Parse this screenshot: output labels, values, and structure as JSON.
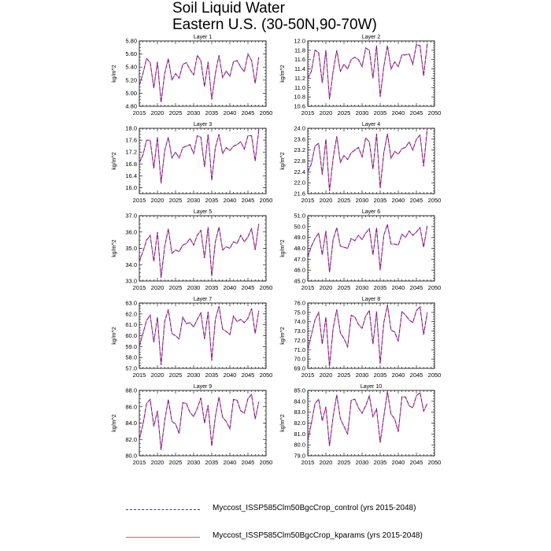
{
  "chart_data": {
    "type": "line",
    "title": "Soil Liquid Water",
    "subtitle": "Eastern U.S. (30-50N,90-70W)",
    "xlabel": "",
    "ylabel": "kg/m^2",
    "xlim": [
      2015,
      2050
    ],
    "x_ticks": [
      "2015",
      "2020",
      "2025",
      "2030",
      "2035",
      "2040",
      "2045",
      "2050"
    ],
    "x": [
      2015,
      2016,
      2017,
      2018,
      2019,
      2020,
      2021,
      2022,
      2023,
      2024,
      2025,
      2026,
      2027,
      2028,
      2029,
      2030,
      2031,
      2032,
      2033,
      2034,
      2035,
      2036,
      2037,
      2038,
      2039,
      2040,
      2041,
      2042,
      2043,
      2044,
      2045,
      2046,
      2047,
      2048
    ],
    "series_styles": [
      {
        "name": "Myccost_ISSP585Clm50BgcCrop_control (yrs 2015-2048)",
        "color": "#6a1fa0",
        "dash": "dashed"
      },
      {
        "name": "Myccost_ISSP585Clm50BgcCrop_kparams (yrs 2015-2048)",
        "color": "#e8546a",
        "dash": "solid"
      }
    ],
    "panels": [
      {
        "title": "Layer 1",
        "ylim": [
          4.8,
          5.8
        ],
        "yticks": [
          "4.80",
          "5.00",
          "5.20",
          "5.40",
          "5.60",
          "5.80"
        ],
        "values": [
          5.12,
          5.3,
          5.53,
          5.47,
          5.08,
          5.48,
          4.86,
          5.3,
          5.53,
          5.2,
          5.3,
          5.23,
          5.44,
          5.47,
          5.36,
          5.28,
          5.58,
          5.5,
          5.1,
          5.48,
          4.9,
          5.3,
          5.58,
          5.24,
          5.34,
          5.26,
          5.48,
          5.5,
          5.4,
          5.33,
          5.6,
          5.5,
          5.15,
          5.55
        ]
      },
      {
        "title": "Layer 2",
        "ylim": [
          10.6,
          12.0
        ],
        "yticks": [
          "10.6",
          "10.8",
          "11.0",
          "11.2",
          "11.4",
          "11.6",
          "11.8",
          "12.0"
        ],
        "values": [
          11.2,
          11.35,
          11.8,
          11.75,
          11.1,
          11.8,
          10.75,
          11.35,
          11.8,
          11.35,
          11.5,
          11.4,
          11.6,
          11.65,
          11.6,
          11.45,
          11.85,
          11.8,
          11.2,
          11.9,
          10.8,
          11.45,
          11.9,
          11.4,
          11.55,
          11.45,
          11.7,
          11.7,
          11.72,
          11.5,
          11.92,
          11.9,
          11.25,
          11.95
        ]
      },
      {
        "title": "Layer 3",
        "ylim": [
          15.8,
          18.0
        ],
        "yticks": [
          "16.0",
          "16.4",
          "16.8",
          "17.2",
          "17.6",
          "18.0"
        ],
        "values": [
          16.85,
          17.1,
          17.6,
          17.6,
          16.65,
          17.7,
          16.15,
          17.25,
          17.7,
          17.0,
          17.2,
          17.0,
          17.35,
          17.4,
          17.45,
          17.15,
          17.75,
          17.7,
          16.7,
          17.8,
          16.25,
          17.35,
          17.8,
          17.15,
          17.35,
          17.25,
          17.4,
          17.45,
          17.55,
          17.3,
          17.75,
          17.75,
          16.9,
          17.95
        ]
      },
      {
        "title": "Layer 4",
        "ylim": [
          21.6,
          24.0
        ],
        "yticks": [
          "21.6",
          "22.0",
          "22.4",
          "22.8",
          "23.2",
          "23.6",
          "24.0"
        ],
        "values": [
          22.4,
          22.7,
          23.35,
          23.45,
          22.3,
          23.6,
          21.7,
          22.9,
          23.7,
          22.75,
          23.0,
          22.85,
          23.1,
          23.2,
          23.3,
          22.95,
          23.65,
          23.5,
          22.5,
          23.8,
          21.8,
          23.1,
          23.8,
          22.9,
          23.15,
          23.05,
          23.25,
          23.3,
          23.5,
          23.2,
          23.6,
          23.75,
          22.6,
          24.0
        ]
      },
      {
        "title": "Layer 5",
        "ylim": [
          33.0,
          37.0
        ],
        "yticks": [
          "33.0",
          "34.0",
          "35.0",
          "36.0",
          "37.0"
        ],
        "values": [
          34.2,
          34.8,
          35.5,
          35.8,
          34.2,
          36.0,
          33.2,
          35.1,
          36.2,
          34.7,
          34.9,
          34.8,
          35.2,
          35.3,
          35.6,
          35.2,
          35.8,
          36.1,
          34.4,
          36.3,
          33.3,
          35.4,
          36.3,
          34.9,
          35.1,
          35.0,
          35.4,
          35.3,
          35.8,
          35.4,
          35.7,
          36.2,
          34.9,
          36.5
        ]
      },
      {
        "title": "Layer 6",
        "ylim": [
          45.0,
          51.0
        ],
        "yticks": [
          "45.0",
          "46.0",
          "47.0",
          "48.0",
          "49.0",
          "50.0",
          "51.0"
        ],
        "values": [
          47.2,
          48.2,
          48.9,
          49.4,
          47.4,
          49.6,
          45.8,
          48.8,
          49.9,
          48.2,
          48.1,
          48.0,
          48.9,
          48.7,
          49.2,
          48.8,
          49.4,
          49.8,
          47.4,
          49.9,
          46.0,
          49.2,
          50.2,
          48.4,
          48.4,
          48.3,
          49.3,
          49.0,
          49.6,
          49.2,
          49.5,
          49.9,
          48.1,
          50.1
        ]
      },
      {
        "title": "Layer 7",
        "ylim": [
          57.0,
          63.0
        ],
        "yticks": [
          "57.0",
          "58.0",
          "59.0",
          "60.0",
          "61.0",
          "62.0",
          "63.0"
        ],
        "values": [
          59.0,
          60.2,
          61.4,
          61.9,
          59.4,
          61.7,
          57.3,
          61.3,
          62.4,
          60.2,
          60.0,
          59.7,
          61.7,
          61.1,
          61.2,
          60.8,
          61.5,
          62.1,
          59.7,
          62.2,
          57.7,
          61.5,
          62.7,
          60.6,
          60.4,
          60.1,
          61.8,
          61.3,
          61.5,
          61.2,
          61.6,
          62.5,
          60.2,
          62.3
        ]
      },
      {
        "title": "Layer 8",
        "ylim": [
          69.0,
          76.0
        ],
        "yticks": [
          "69.0",
          "70.0",
          "71.0",
          "72.0",
          "73.0",
          "74.0",
          "75.0",
          "76.0"
        ],
        "values": [
          71.0,
          72.6,
          74.2,
          75.0,
          71.6,
          74.5,
          69.2,
          73.3,
          75.3,
          72.8,
          72.2,
          71.3,
          74.7,
          74.5,
          73.7,
          73.3,
          74.6,
          75.2,
          71.6,
          75.1,
          69.5,
          73.9,
          75.8,
          73.1,
          72.9,
          71.9,
          75.1,
          74.7,
          74.2,
          73.9,
          75.2,
          75.6,
          72.6,
          75.0
        ]
      },
      {
        "title": "Layer 9",
        "ylim": [
          80.0,
          88.0
        ],
        "yticks": [
          "80.0",
          "82.0",
          "84.0",
          "86.0",
          "88.0"
        ],
        "values": [
          82.0,
          83.8,
          86.4,
          86.9,
          83.6,
          85.5,
          80.7,
          84.3,
          86.9,
          84.2,
          83.9,
          82.7,
          86.5,
          86.4,
          85.3,
          84.8,
          85.8,
          87.1,
          84.0,
          86.2,
          81.2,
          84.8,
          87.2,
          84.7,
          84.2,
          83.3,
          86.9,
          86.8,
          85.5,
          85.2,
          87.0,
          87.5,
          84.5,
          86.6
        ]
      },
      {
        "title": "Layer 10",
        "ylim": [
          79.0,
          85.0
        ],
        "yticks": [
          "79.0",
          "80.0",
          "81.0",
          "82.0",
          "83.0",
          "84.0",
          "85.0"
        ],
        "values": [
          80.4,
          82.0,
          83.8,
          84.2,
          82.2,
          83.5,
          79.9,
          82.6,
          84.6,
          82.4,
          81.7,
          81.0,
          84.1,
          84.2,
          83.4,
          82.9,
          83.6,
          84.5,
          82.6,
          83.3,
          80.2,
          82.6,
          84.9,
          82.8,
          82.4,
          81.2,
          84.4,
          84.4,
          83.6,
          83.4,
          84.5,
          84.8,
          83.1,
          83.8
        ]
      }
    ]
  }
}
